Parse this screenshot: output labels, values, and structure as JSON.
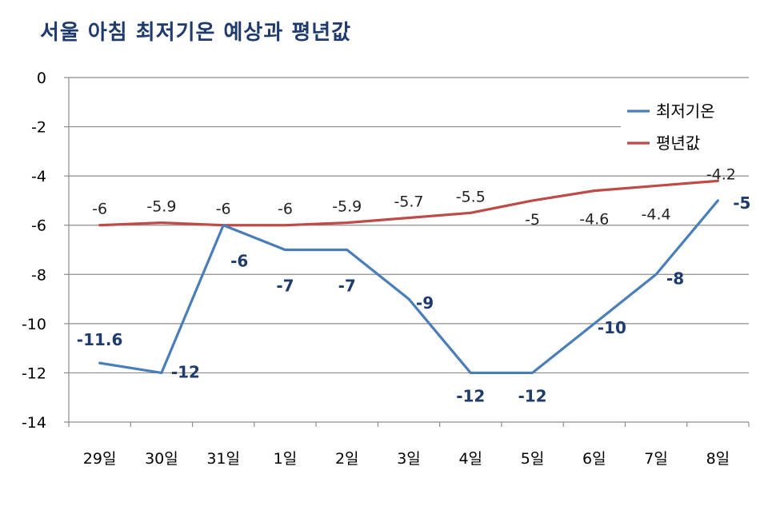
{
  "chart_data": {
    "type": "line",
    "title": "서울 아침 최저기온 예상과 평년값",
    "categories": [
      "29일",
      "30일",
      "31일",
      "1일",
      "2일",
      "3일",
      "4일",
      "5일",
      "6일",
      "7일",
      "8일"
    ],
    "series": [
      {
        "name": "최저기온",
        "color": "#4a7ebb",
        "values": [
          -11.6,
          -12,
          -6,
          -7,
          -7,
          -9,
          -12,
          -12,
          -10,
          -8,
          -5
        ]
      },
      {
        "name": "평년값",
        "color": "#be4b48",
        "values": [
          -6,
          -5.9,
          -6,
          -6,
          -5.9,
          -5.7,
          -5.5,
          -5,
          -4.6,
          -4.4,
          -4.2
        ]
      }
    ],
    "ylim": [
      -14,
      0
    ],
    "yticks": [
      0,
      -2,
      -4,
      -6,
      -8,
      -10,
      -12,
      -14
    ],
    "grid": true,
    "legend": "top-right"
  }
}
